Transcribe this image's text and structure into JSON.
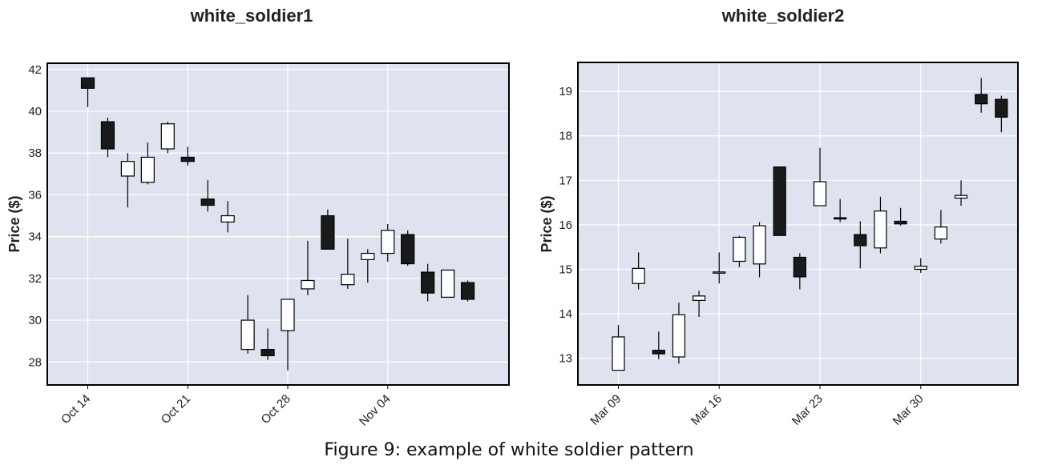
{
  "caption": "Figure 9: example of white soldier pattern",
  "chart_data": [
    {
      "type": "candlestick",
      "title": "white_soldier1",
      "ylabel": "Price ($)",
      "xlabel": "",
      "ylim": [
        26.9,
        42.3
      ],
      "yticks": [
        28,
        30,
        32,
        34,
        36,
        38,
        40,
        42
      ],
      "xtick_labels": [
        "Oct 14",
        "Oct 21",
        "Oct 28",
        "Nov 04"
      ],
      "grid": true,
      "background": "#dee3ef",
      "up_color": "#ffffff",
      "down_color": "#1a1a1a",
      "candles": [
        {
          "o": 41.6,
          "h": 41.6,
          "l": 40.2,
          "c": 41.1
        },
        {
          "o": 39.5,
          "h": 39.7,
          "l": 37.8,
          "c": 38.2
        },
        {
          "o": 36.9,
          "h": 38.0,
          "l": 35.4,
          "c": 37.6
        },
        {
          "o": 36.6,
          "h": 38.5,
          "l": 36.5,
          "c": 37.8
        },
        {
          "o": 38.2,
          "h": 39.5,
          "l": 38.0,
          "c": 39.4
        },
        {
          "o": 37.8,
          "h": 38.3,
          "l": 37.4,
          "c": 37.6
        },
        {
          "o": 35.8,
          "h": 36.7,
          "l": 35.2,
          "c": 35.5
        },
        {
          "o": 34.7,
          "h": 35.7,
          "l": 34.2,
          "c": 35.0
        },
        {
          "o": 28.6,
          "h": 31.2,
          "l": 28.4,
          "c": 30.0
        },
        {
          "o": 28.6,
          "h": 29.6,
          "l": 28.1,
          "c": 28.3
        },
        {
          "o": 29.5,
          "h": 31.0,
          "l": 27.6,
          "c": 31.0
        },
        {
          "o": 31.5,
          "h": 33.8,
          "l": 31.2,
          "c": 31.9
        },
        {
          "o": 35.0,
          "h": 35.3,
          "l": 33.4,
          "c": 33.4
        },
        {
          "o": 31.7,
          "h": 33.9,
          "l": 31.5,
          "c": 32.2
        },
        {
          "o": 32.9,
          "h": 33.4,
          "l": 31.8,
          "c": 33.2
        },
        {
          "o": 33.2,
          "h": 34.6,
          "l": 32.8,
          "c": 34.3
        },
        {
          "o": 34.1,
          "h": 34.3,
          "l": 32.6,
          "c": 32.7
        },
        {
          "o": 32.3,
          "h": 32.7,
          "l": 30.9,
          "c": 31.3
        },
        {
          "o": 31.1,
          "h": 32.4,
          "l": 31.1,
          "c": 32.4
        },
        {
          "o": 31.8,
          "h": 31.9,
          "l": 30.9,
          "c": 31.0
        }
      ]
    },
    {
      "type": "candlestick",
      "title": "white_soldier2",
      "ylabel": "Price ($)",
      "xlabel": "",
      "ylim": [
        12.4,
        19.65
      ],
      "yticks": [
        13,
        14,
        15,
        16,
        17,
        18,
        19
      ],
      "xtick_labels": [
        "Mar 09",
        "Mar 16",
        "Mar 23",
        "Mar 30"
      ],
      "grid": true,
      "background": "#dee3ef",
      "up_color": "#ffffff",
      "down_color": "#1a1a1a",
      "candles": [
        {
          "o": 12.73,
          "h": 13.75,
          "l": 12.73,
          "c": 13.48
        },
        {
          "o": 14.68,
          "h": 15.38,
          "l": 14.55,
          "c": 15.02
        },
        {
          "o": 13.18,
          "h": 13.6,
          "l": 12.98,
          "c": 13.1
        },
        {
          "o": 13.03,
          "h": 14.25,
          "l": 12.88,
          "c": 13.98
        },
        {
          "o": 14.3,
          "h": 14.52,
          "l": 13.93,
          "c": 14.4
        },
        {
          "o": 14.93,
          "h": 15.38,
          "l": 14.68,
          "c": 14.94
        },
        {
          "o": 15.18,
          "h": 15.75,
          "l": 15.05,
          "c": 15.72
        },
        {
          "o": 15.12,
          "h": 16.06,
          "l": 14.82,
          "c": 15.98
        },
        {
          "o": 17.3,
          "h": 17.3,
          "l": 15.76,
          "c": 15.76
        },
        {
          "o": 15.27,
          "h": 15.36,
          "l": 14.55,
          "c": 14.83
        },
        {
          "o": 16.43,
          "h": 17.73,
          "l": 16.43,
          "c": 16.97
        },
        {
          "o": 16.16,
          "h": 16.58,
          "l": 16.06,
          "c": 16.13
        },
        {
          "o": 15.78,
          "h": 16.08,
          "l": 15.02,
          "c": 15.53
        },
        {
          "o": 15.48,
          "h": 16.63,
          "l": 15.36,
          "c": 16.31
        },
        {
          "o": 16.08,
          "h": 16.38,
          "l": 15.98,
          "c": 16.02
        },
        {
          "o": 15.0,
          "h": 15.25,
          "l": 14.92,
          "c": 15.07
        },
        {
          "o": 15.68,
          "h": 16.33,
          "l": 15.58,
          "c": 15.95
        },
        {
          "o": 16.6,
          "h": 17.0,
          "l": 16.43,
          "c": 16.66
        },
        {
          "o": 18.93,
          "h": 19.3,
          "l": 18.52,
          "c": 18.72
        },
        {
          "o": 18.82,
          "h": 18.9,
          "l": 18.08,
          "c": 18.42
        }
      ]
    }
  ]
}
